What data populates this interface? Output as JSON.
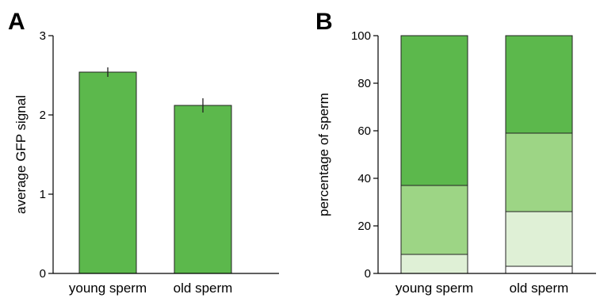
{
  "figure": {
    "panel_a_letter": "A",
    "panel_b_letter": "B"
  },
  "chart_data": [
    {
      "type": "bar",
      "panel": "A",
      "title": "",
      "xlabel": "",
      "ylabel": "average GFP signal",
      "categories": [
        "young sperm",
        "old sperm"
      ],
      "values": [
        2.54,
        2.12
      ],
      "errors": [
        0.06,
        0.09
      ],
      "ylim": [
        0,
        3
      ],
      "yticks": [
        0,
        1,
        2,
        3
      ],
      "grid": false,
      "colors": {
        "bar": "#5cb84c"
      }
    },
    {
      "type": "bar",
      "panel": "B",
      "stacked": true,
      "title": "",
      "xlabel": "",
      "ylabel": "percentage of sperm",
      "categories": [
        "young sperm",
        "old sperm"
      ],
      "series": [
        {
          "values": [
            0,
            3
          ],
          "color": "#ffffff"
        },
        {
          "values": [
            8,
            23
          ],
          "color": "#dff0d6"
        },
        {
          "values": [
            29,
            33
          ],
          "color": "#9dd585"
        },
        {
          "values": [
            63,
            41
          ],
          "color": "#5cb84c"
        }
      ],
      "ylim": [
        0,
        100
      ],
      "yticks": [
        0,
        20,
        40,
        60,
        80,
        100
      ],
      "grid": false
    }
  ]
}
